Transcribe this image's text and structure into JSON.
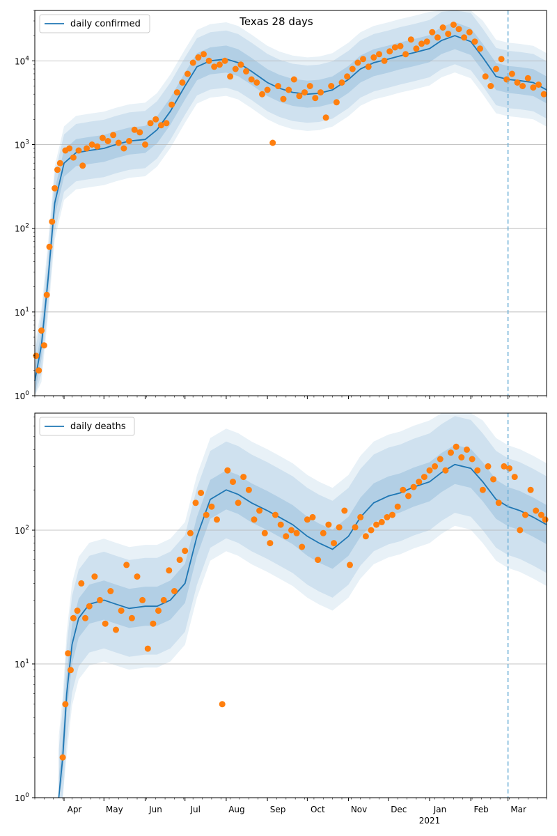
{
  "title": "Texas 28 days",
  "colors": {
    "line": "#1f77b4",
    "points": "#ff7f0e",
    "band": "#1f77b4",
    "grid": "#b0b0b0",
    "vline": "#6baed6"
  },
  "x_axis": {
    "start": "2020-03-10",
    "end": "2021-03-30",
    "ticks": [
      {
        "date": "2020-04-01",
        "label": "Apr"
      },
      {
        "date": "2020-05-01",
        "label": "May"
      },
      {
        "date": "2020-06-01",
        "label": "Jun"
      },
      {
        "date": "2020-07-01",
        "label": "Jul"
      },
      {
        "date": "2020-08-01",
        "label": "Aug"
      },
      {
        "date": "2020-09-01",
        "label": "Sep"
      },
      {
        "date": "2020-10-01",
        "label": "Oct"
      },
      {
        "date": "2020-11-01",
        "label": "Nov"
      },
      {
        "date": "2020-12-01",
        "label": "Dec"
      },
      {
        "date": "2021-01-01",
        "label": "Jan",
        "sublabel": "2021"
      },
      {
        "date": "2021-02-01",
        "label": "Feb"
      },
      {
        "date": "2021-03-01",
        "label": "Mar"
      }
    ],
    "vline_date": "2021-03-01"
  },
  "chart_data": [
    {
      "type": "line",
      "title": "Texas 28 days",
      "legend": "daily confirmed",
      "legend_position": "top-left",
      "yscale": "log",
      "ylim": [
        1,
        40000
      ],
      "yticks": [
        1,
        10,
        100,
        1000,
        10000
      ],
      "ytick_labels": [
        "10^0",
        "10^1",
        "10^2",
        "10^3",
        "10^4"
      ],
      "grid": "horizontal",
      "series": [
        {
          "name": "daily confirmed",
          "kind": "model line with credible bands",
          "x": [
            "2020-03-10",
            "2020-03-15",
            "2020-03-20",
            "2020-03-25",
            "2020-04-01",
            "2020-04-10",
            "2020-04-20",
            "2020-05-01",
            "2020-05-10",
            "2020-05-20",
            "2020-06-01",
            "2020-06-10",
            "2020-06-20",
            "2020-07-01",
            "2020-07-10",
            "2020-07-20",
            "2020-08-01",
            "2020-08-10",
            "2020-08-20",
            "2020-09-01",
            "2020-09-10",
            "2020-09-20",
            "2020-10-01",
            "2020-10-10",
            "2020-10-20",
            "2020-11-01",
            "2020-11-10",
            "2020-11-20",
            "2020-12-01",
            "2020-12-10",
            "2020-12-20",
            "2021-01-01",
            "2021-01-10",
            "2021-01-20",
            "2021-02-01",
            "2021-02-10",
            "2021-02-20",
            "2021-03-01",
            "2021-03-10",
            "2021-03-20",
            "2021-03-30"
          ],
          "y": [
            1.5,
            4,
            25,
            200,
            600,
            800,
            850,
            900,
            1000,
            1100,
            1150,
            1500,
            2500,
            5000,
            8500,
            10000,
            10500,
            9500,
            7500,
            5500,
            4700,
            4200,
            4000,
            4100,
            4500,
            6000,
            8000,
            9500,
            10500,
            11500,
            12500,
            14000,
            17500,
            20000,
            17000,
            11000,
            6500,
            6000,
            5800,
            5500,
            4500
          ],
          "band50_ratio": 1.45,
          "band95_ratio": 2.2
        },
        {
          "name": "observed",
          "kind": "scatter",
          "x": [
            "2020-03-11",
            "2020-03-13",
            "2020-03-15",
            "2020-03-17",
            "2020-03-19",
            "2020-03-21",
            "2020-03-23",
            "2020-03-25",
            "2020-03-27",
            "2020-03-29",
            "2020-04-02",
            "2020-04-05",
            "2020-04-08",
            "2020-04-12",
            "2020-04-15",
            "2020-04-18",
            "2020-04-22",
            "2020-04-26",
            "2020-04-30",
            "2020-05-04",
            "2020-05-08",
            "2020-05-12",
            "2020-05-16",
            "2020-05-20",
            "2020-05-24",
            "2020-05-28",
            "2020-06-01",
            "2020-06-05",
            "2020-06-09",
            "2020-06-13",
            "2020-06-17",
            "2020-06-21",
            "2020-06-25",
            "2020-06-29",
            "2020-07-03",
            "2020-07-07",
            "2020-07-11",
            "2020-07-15",
            "2020-07-19",
            "2020-07-23",
            "2020-07-27",
            "2020-07-31",
            "2020-08-04",
            "2020-08-08",
            "2020-08-12",
            "2020-08-16",
            "2020-08-20",
            "2020-08-24",
            "2020-08-28",
            "2020-09-01",
            "2020-09-05",
            "2020-09-09",
            "2020-09-13",
            "2020-09-17",
            "2020-09-21",
            "2020-09-25",
            "2020-09-29",
            "2020-10-03",
            "2020-10-07",
            "2020-10-11",
            "2020-10-15",
            "2020-10-19",
            "2020-10-23",
            "2020-10-27",
            "2020-10-31",
            "2020-11-04",
            "2020-11-08",
            "2020-11-12",
            "2020-11-16",
            "2020-11-20",
            "2020-11-24",
            "2020-11-28",
            "2020-12-02",
            "2020-12-06",
            "2020-12-10",
            "2020-12-14",
            "2020-12-18",
            "2020-12-22",
            "2020-12-26",
            "2020-12-30",
            "2021-01-03",
            "2021-01-07",
            "2021-01-11",
            "2021-01-15",
            "2021-01-19",
            "2021-01-23",
            "2021-01-27",
            "2021-01-31",
            "2021-02-04",
            "2021-02-08",
            "2021-02-12",
            "2021-02-16",
            "2021-02-20",
            "2021-02-24",
            "2021-02-28",
            "2021-03-04",
            "2021-03-08",
            "2021-03-12",
            "2021-03-16",
            "2021-03-20",
            "2021-03-24",
            "2021-03-28"
          ],
          "y": [
            3,
            2,
            6,
            4,
            16,
            60,
            120,
            300,
            500,
            600,
            850,
            900,
            700,
            850,
            560,
            900,
            1000,
            950,
            1200,
            1100,
            1300,
            1050,
            900,
            1100,
            1500,
            1400,
            1000,
            1800,
            2000,
            1700,
            1800,
            3000,
            4200,
            5500,
            7000,
            9500,
            11000,
            12000,
            10000,
            8500,
            9000,
            10000,
            6500,
            8000,
            9000,
            7500,
            6000,
            5500,
            4000,
            4500,
            1050,
            5000,
            3500,
            4500,
            6000,
            3800,
            4200,
            5000,
            3600,
            4200,
            2100,
            5000,
            3200,
            5500,
            6500,
            8000,
            9500,
            10500,
            8500,
            11000,
            12000,
            10000,
            13000,
            14500,
            15000,
            12000,
            18000,
            14000,
            16000,
            17000,
            22000,
            19000,
            25000,
            21000,
            27000,
            24000,
            19000,
            22000,
            17000,
            14000,
            6500,
            5000,
            8000,
            10500,
            6000,
            7000,
            5500,
            5000,
            6200,
            4800,
            5200,
            4000
          ]
        }
      ]
    },
    {
      "type": "line",
      "legend": "daily deaths",
      "legend_position": "top-left",
      "yscale": "log",
      "ylim": [
        1,
        750
      ],
      "yticks": [
        1,
        10,
        100
      ],
      "ytick_labels": [
        "10^0",
        "10^1",
        "10^2"
      ],
      "grid": "horizontal",
      "series": [
        {
          "name": "daily deaths",
          "kind": "model line with credible bands",
          "x": [
            "2020-03-28",
            "2020-03-31",
            "2020-04-03",
            "2020-04-07",
            "2020-04-12",
            "2020-04-20",
            "2020-05-01",
            "2020-05-10",
            "2020-05-20",
            "2020-06-01",
            "2020-06-10",
            "2020-06-20",
            "2020-07-01",
            "2020-07-10",
            "2020-07-20",
            "2020-08-01",
            "2020-08-10",
            "2020-08-20",
            "2020-09-01",
            "2020-09-10",
            "2020-09-20",
            "2020-10-01",
            "2020-10-10",
            "2020-10-20",
            "2020-11-01",
            "2020-11-10",
            "2020-11-20",
            "2020-12-01",
            "2020-12-10",
            "2020-12-20",
            "2021-01-01",
            "2021-01-10",
            "2021-01-20",
            "2021-02-01",
            "2021-02-10",
            "2021-02-20",
            "2021-03-01",
            "2021-03-10",
            "2021-03-20",
            "2021-03-30"
          ],
          "y": [
            1,
            2,
            6,
            14,
            22,
            28,
            30,
            28,
            26,
            27,
            27,
            30,
            40,
            90,
            170,
            200,
            185,
            160,
            140,
            125,
            110,
            90,
            80,
            72,
            90,
            125,
            160,
            180,
            190,
            210,
            230,
            270,
            310,
            290,
            230,
            170,
            150,
            140,
            125,
            110
          ],
          "band50_ratio": 1.4,
          "band95_ratio": 2.3
        },
        {
          "name": "observed",
          "kind": "scatter",
          "x": [
            "2020-03-31",
            "2020-04-02",
            "2020-04-04",
            "2020-04-06",
            "2020-04-08",
            "2020-04-11",
            "2020-04-14",
            "2020-04-17",
            "2020-04-20",
            "2020-04-24",
            "2020-04-28",
            "2020-05-02",
            "2020-05-06",
            "2020-05-10",
            "2020-05-14",
            "2020-05-18",
            "2020-05-22",
            "2020-05-26",
            "2020-05-30",
            "2020-06-03",
            "2020-06-07",
            "2020-06-11",
            "2020-06-15",
            "2020-06-19",
            "2020-06-23",
            "2020-06-27",
            "2020-07-01",
            "2020-07-05",
            "2020-07-09",
            "2020-07-13",
            "2020-07-17",
            "2020-07-21",
            "2020-07-25",
            "2020-07-29",
            "2020-08-02",
            "2020-08-06",
            "2020-08-10",
            "2020-08-14",
            "2020-08-18",
            "2020-08-22",
            "2020-08-26",
            "2020-08-30",
            "2020-09-03",
            "2020-09-07",
            "2020-09-11",
            "2020-09-15",
            "2020-09-19",
            "2020-09-23",
            "2020-09-27",
            "2020-10-01",
            "2020-10-05",
            "2020-10-09",
            "2020-10-13",
            "2020-10-17",
            "2020-10-21",
            "2020-10-25",
            "2020-10-29",
            "2020-11-02",
            "2020-11-06",
            "2020-11-10",
            "2020-11-14",
            "2020-11-18",
            "2020-11-22",
            "2020-11-26",
            "2020-11-30",
            "2020-12-04",
            "2020-12-08",
            "2020-12-12",
            "2020-12-16",
            "2020-12-20",
            "2020-12-24",
            "2020-12-28",
            "2021-01-01",
            "2021-01-05",
            "2021-01-09",
            "2021-01-13",
            "2021-01-17",
            "2021-01-21",
            "2021-01-25",
            "2021-01-29",
            "2021-02-02",
            "2021-02-06",
            "2021-02-10",
            "2021-02-14",
            "2021-02-18",
            "2021-02-22",
            "2021-02-26",
            "2021-03-02",
            "2021-03-06",
            "2021-03-10",
            "2021-03-14",
            "2021-03-18",
            "2021-03-22",
            "2021-03-26",
            "2021-03-29"
          ],
          "y": [
            2,
            5,
            12,
            9,
            22,
            25,
            40,
            22,
            27,
            45,
            30,
            20,
            35,
            18,
            25,
            55,
            22,
            45,
            30,
            13,
            20,
            25,
            30,
            50,
            35,
            60,
            70,
            95,
            160,
            190,
            130,
            150,
            120,
            5,
            280,
            230,
            160,
            250,
            200,
            120,
            140,
            95,
            80,
            130,
            110,
            90,
            100,
            95,
            75,
            120,
            125,
            60,
            95,
            110,
            80,
            105,
            140,
            55,
            105,
            125,
            90,
            100,
            110,
            115,
            125,
            130,
            150,
            200,
            180,
            210,
            230,
            250,
            280,
            300,
            340,
            280,
            380,
            420,
            350,
            400,
            340,
            280,
            200,
            300,
            240,
            160,
            300,
            290,
            250,
            100,
            130,
            200,
            140,
            130,
            120
          ]
        }
      ]
    }
  ]
}
